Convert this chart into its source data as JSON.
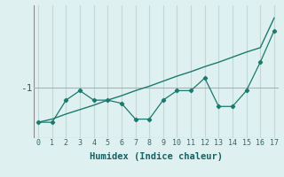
{
  "xlabel": "Humidex (Indice chaleur)",
  "x": [
    0,
    1,
    2,
    3,
    4,
    5,
    6,
    7,
    8,
    9,
    10,
    11,
    12,
    13,
    14,
    15,
    16,
    17
  ],
  "y_line": [
    -1.55,
    -1.55,
    -1.2,
    -1.05,
    -1.2,
    -1.2,
    -1.25,
    -1.5,
    -1.5,
    -1.2,
    -1.05,
    -1.05,
    -0.85,
    -1.3,
    -1.3,
    -1.05,
    -0.6,
    -0.1
  ],
  "y_trend": [
    -1.55,
    -1.5,
    -1.42,
    -1.35,
    -1.28,
    -1.2,
    -1.13,
    -1.05,
    -0.98,
    -0.9,
    -0.82,
    -0.75,
    -0.67,
    -0.6,
    -0.52,
    -0.44,
    -0.37,
    0.1
  ],
  "line_color": "#1a7a6e",
  "bg_color": "#dff0f0",
  "grid_color": "#c0d8d8",
  "hline_color": "#b0b0b0",
  "ylim": [
    -1.8,
    0.3
  ],
  "yticks": [
    -1
  ],
  "ytick_labels": [
    "-1"
  ],
  "xlim": [
    -0.3,
    17.3
  ],
  "xticks": [
    0,
    1,
    2,
    3,
    4,
    5,
    6,
    7,
    8,
    9,
    10,
    11,
    12,
    13,
    14,
    15,
    16,
    17
  ]
}
